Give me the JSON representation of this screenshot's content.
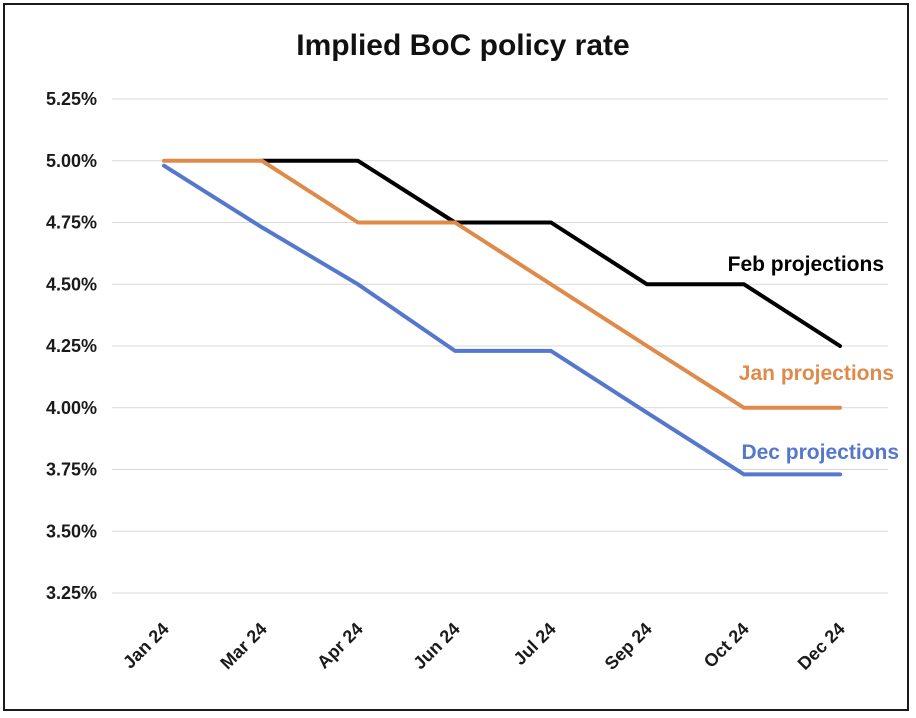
{
  "chart_data": {
    "type": "line",
    "title": "Implied BoC policy rate",
    "xlabel": "",
    "ylabel": "",
    "categories": [
      "Jan 24",
      "Mar 24",
      "Apr 24",
      "Jun 24",
      "Jul 24",
      "Sep 24",
      "Oct 24",
      "Dec 24"
    ],
    "ylim": [
      3.25,
      5.25
    ],
    "yticks": [
      "5.25%",
      "5.00%",
      "4.75%",
      "4.50%",
      "4.25%",
      "4.00%",
      "3.75%",
      "3.50%",
      "3.25%"
    ],
    "ytick_values": [
      5.25,
      5.0,
      4.75,
      4.5,
      4.25,
      4.0,
      3.75,
      3.5,
      3.25
    ],
    "grid": true,
    "series": [
      {
        "name": "Feb projections",
        "color": "#000000",
        "values": [
          null,
          5.0,
          5.0,
          4.75,
          4.75,
          4.5,
          4.5,
          4.25
        ]
      },
      {
        "name": "Jan projections",
        "color": "#e08a4a",
        "values": [
          5.0,
          5.0,
          4.75,
          4.75,
          4.5,
          4.25,
          4.0,
          4.0
        ]
      },
      {
        "name": "Dec projections",
        "color": "#5577cc",
        "values": [
          4.98,
          4.73,
          4.5,
          4.23,
          4.23,
          3.98,
          3.73,
          3.73
        ]
      }
    ]
  }
}
